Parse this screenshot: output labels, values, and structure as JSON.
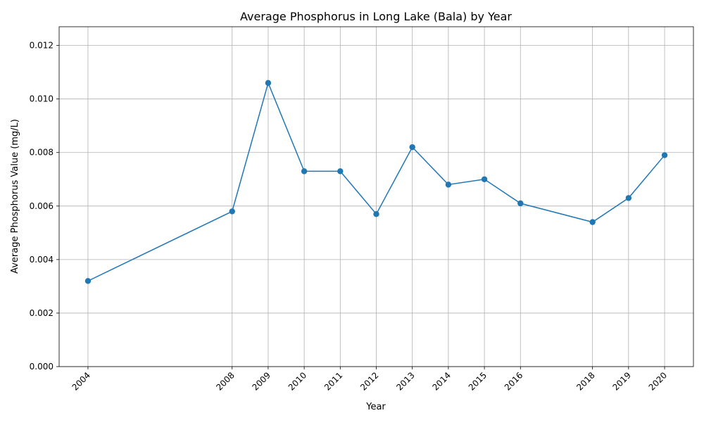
{
  "chart_data": {
    "type": "line",
    "title": "Average Phosphorus in Long Lake (Bala) by Year",
    "xlabel": "Year",
    "ylabel": "Average Phosphorus Value (mg/L)",
    "x": [
      2004,
      2008,
      2009,
      2010,
      2011,
      2012,
      2013,
      2014,
      2015,
      2016,
      2018,
      2019,
      2020
    ],
    "x_tick_labels": [
      "2004",
      "2008",
      "2009",
      "2010",
      "2011",
      "2012",
      "2013",
      "2014",
      "2015",
      "2016",
      "2018",
      "2019",
      "2020"
    ],
    "y_ticks": [
      0.0,
      0.002,
      0.004,
      0.006,
      0.008,
      0.01,
      0.012
    ],
    "y_tick_labels": [
      "0.000",
      "0.002",
      "0.004",
      "0.006",
      "0.008",
      "0.010",
      "0.012"
    ],
    "series": [
      {
        "values": [
          0.0032,
          0.0058,
          0.0106,
          0.0073,
          0.0073,
          0.0057,
          0.0082,
          0.0068,
          0.007,
          0.0061,
          0.0054,
          0.0063,
          0.0079
        ],
        "color": "#1f77b4",
        "marker": "circle"
      }
    ],
    "xlim": [
      2003.2,
      2020.8
    ],
    "ylim": [
      0,
      0.0127
    ],
    "grid": true,
    "legend": "none"
  }
}
